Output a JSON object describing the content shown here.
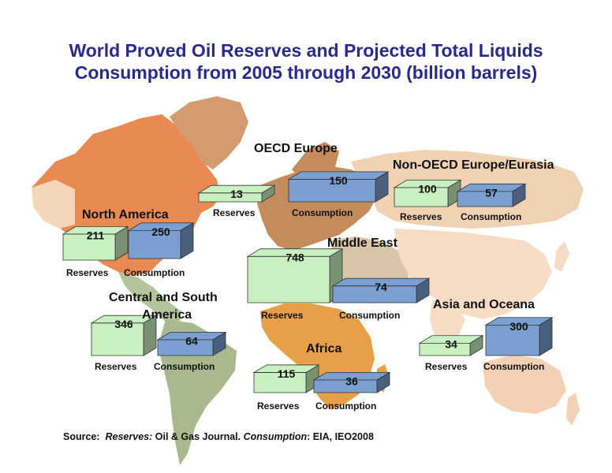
{
  "title_line1": "World Proved Oil Reserves and Projected Total Liquids",
  "title_line2": "Consumption from 2005 through 2030 (billion barrels)",
  "source": {
    "prefix": "Source:",
    "reserves_label": "Reserves:",
    "reserves_source": "Oil & Gas Journal.",
    "consumption_label": "Consumption",
    "consumption_source": ":  EIA, IEO2008"
  },
  "colors": {
    "reserves_fill": "#c9f0c0",
    "consumption_fill": "#7a9fd0",
    "title": "#2a2a8c"
  },
  "chart_data": {
    "type": "bar",
    "title": "World Proved Oil Reserves and Projected Total Liquids Consumption from 2005 through 2030 (billion barrels)",
    "unit": "billion barrels",
    "categories": [
      "North America",
      "Central and South America",
      "OECD Europe",
      "Middle East",
      "Africa",
      "Non-OECD Europe/Eurasia",
      "Asia and Oceana"
    ],
    "series": [
      {
        "name": "Reserves",
        "values": [
          211,
          346,
          13,
          748,
          115,
          100,
          34
        ]
      },
      {
        "name": "Consumption",
        "values": [
          250,
          64,
          150,
          74,
          36,
          57,
          300
        ]
      }
    ]
  },
  "regions": [
    {
      "name": "North America",
      "name2": "",
      "reserves_label": "Reserves",
      "consumption_label": "Consumption"
    },
    {
      "name": "Central and South",
      "name2": "America",
      "reserves_label": "Reserves",
      "consumption_label": "Consumption"
    },
    {
      "name": "OECD Europe",
      "name2": "",
      "reserves_label": "Reserves",
      "consumption_label": "Consumption"
    },
    {
      "name": "Middle East",
      "name2": "",
      "reserves_label": "Reserves",
      "consumption_label": "Consumption"
    },
    {
      "name": "Africa",
      "name2": "",
      "reserves_label": "Reserves",
      "consumption_label": "Consumption"
    },
    {
      "name": "Non-OECD Europe/Eurasia",
      "name2": "",
      "reserves_label": "Reserves",
      "consumption_label": "Consumption"
    },
    {
      "name": "Asia and Oceana",
      "name2": "",
      "reserves_label": "Reserves",
      "consumption_label": "Consumption"
    }
  ]
}
